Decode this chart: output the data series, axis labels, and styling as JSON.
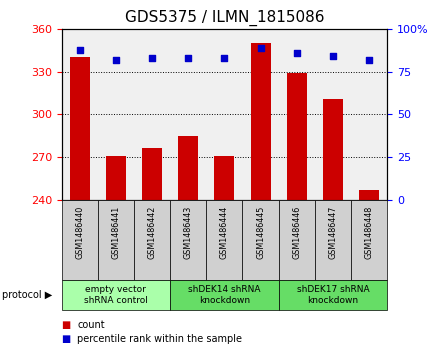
{
  "title": "GDS5375 / ILMN_1815086",
  "samples": [
    "GSM1486440",
    "GSM1486441",
    "GSM1486442",
    "GSM1486443",
    "GSM1486444",
    "GSM1486445",
    "GSM1486446",
    "GSM1486447",
    "GSM1486448"
  ],
  "counts": [
    340,
    271,
    276,
    285,
    271,
    350,
    329,
    311,
    247
  ],
  "percentiles": [
    88,
    82,
    83,
    83,
    83,
    89,
    86,
    84,
    82
  ],
  "ylim_left": [
    240,
    360
  ],
  "yticks_left": [
    240,
    270,
    300,
    330,
    360
  ],
  "ylim_right": [
    0,
    100
  ],
  "yticks_right": [
    0,
    25,
    50,
    75,
    100
  ],
  "bar_color": "#cc0000",
  "dot_color": "#0000cc",
  "bar_bottom": 240,
  "groups": [
    {
      "label": "empty vector\nshRNA control",
      "start": 0,
      "end": 3,
      "color": "#aaffaa"
    },
    {
      "label": "shDEK14 shRNA\nknockdown",
      "start": 3,
      "end": 6,
      "color": "#66dd66"
    },
    {
      "label": "shDEK17 shRNA\nknockdown",
      "start": 6,
      "end": 9,
      "color": "#66dd66"
    }
  ],
  "background_color": "#ffffff",
  "plot_bg_color": "#f0f0f0",
  "title_fontsize": 11,
  "tick_fontsize": 8,
  "sample_box_color": "#d0d0d0"
}
